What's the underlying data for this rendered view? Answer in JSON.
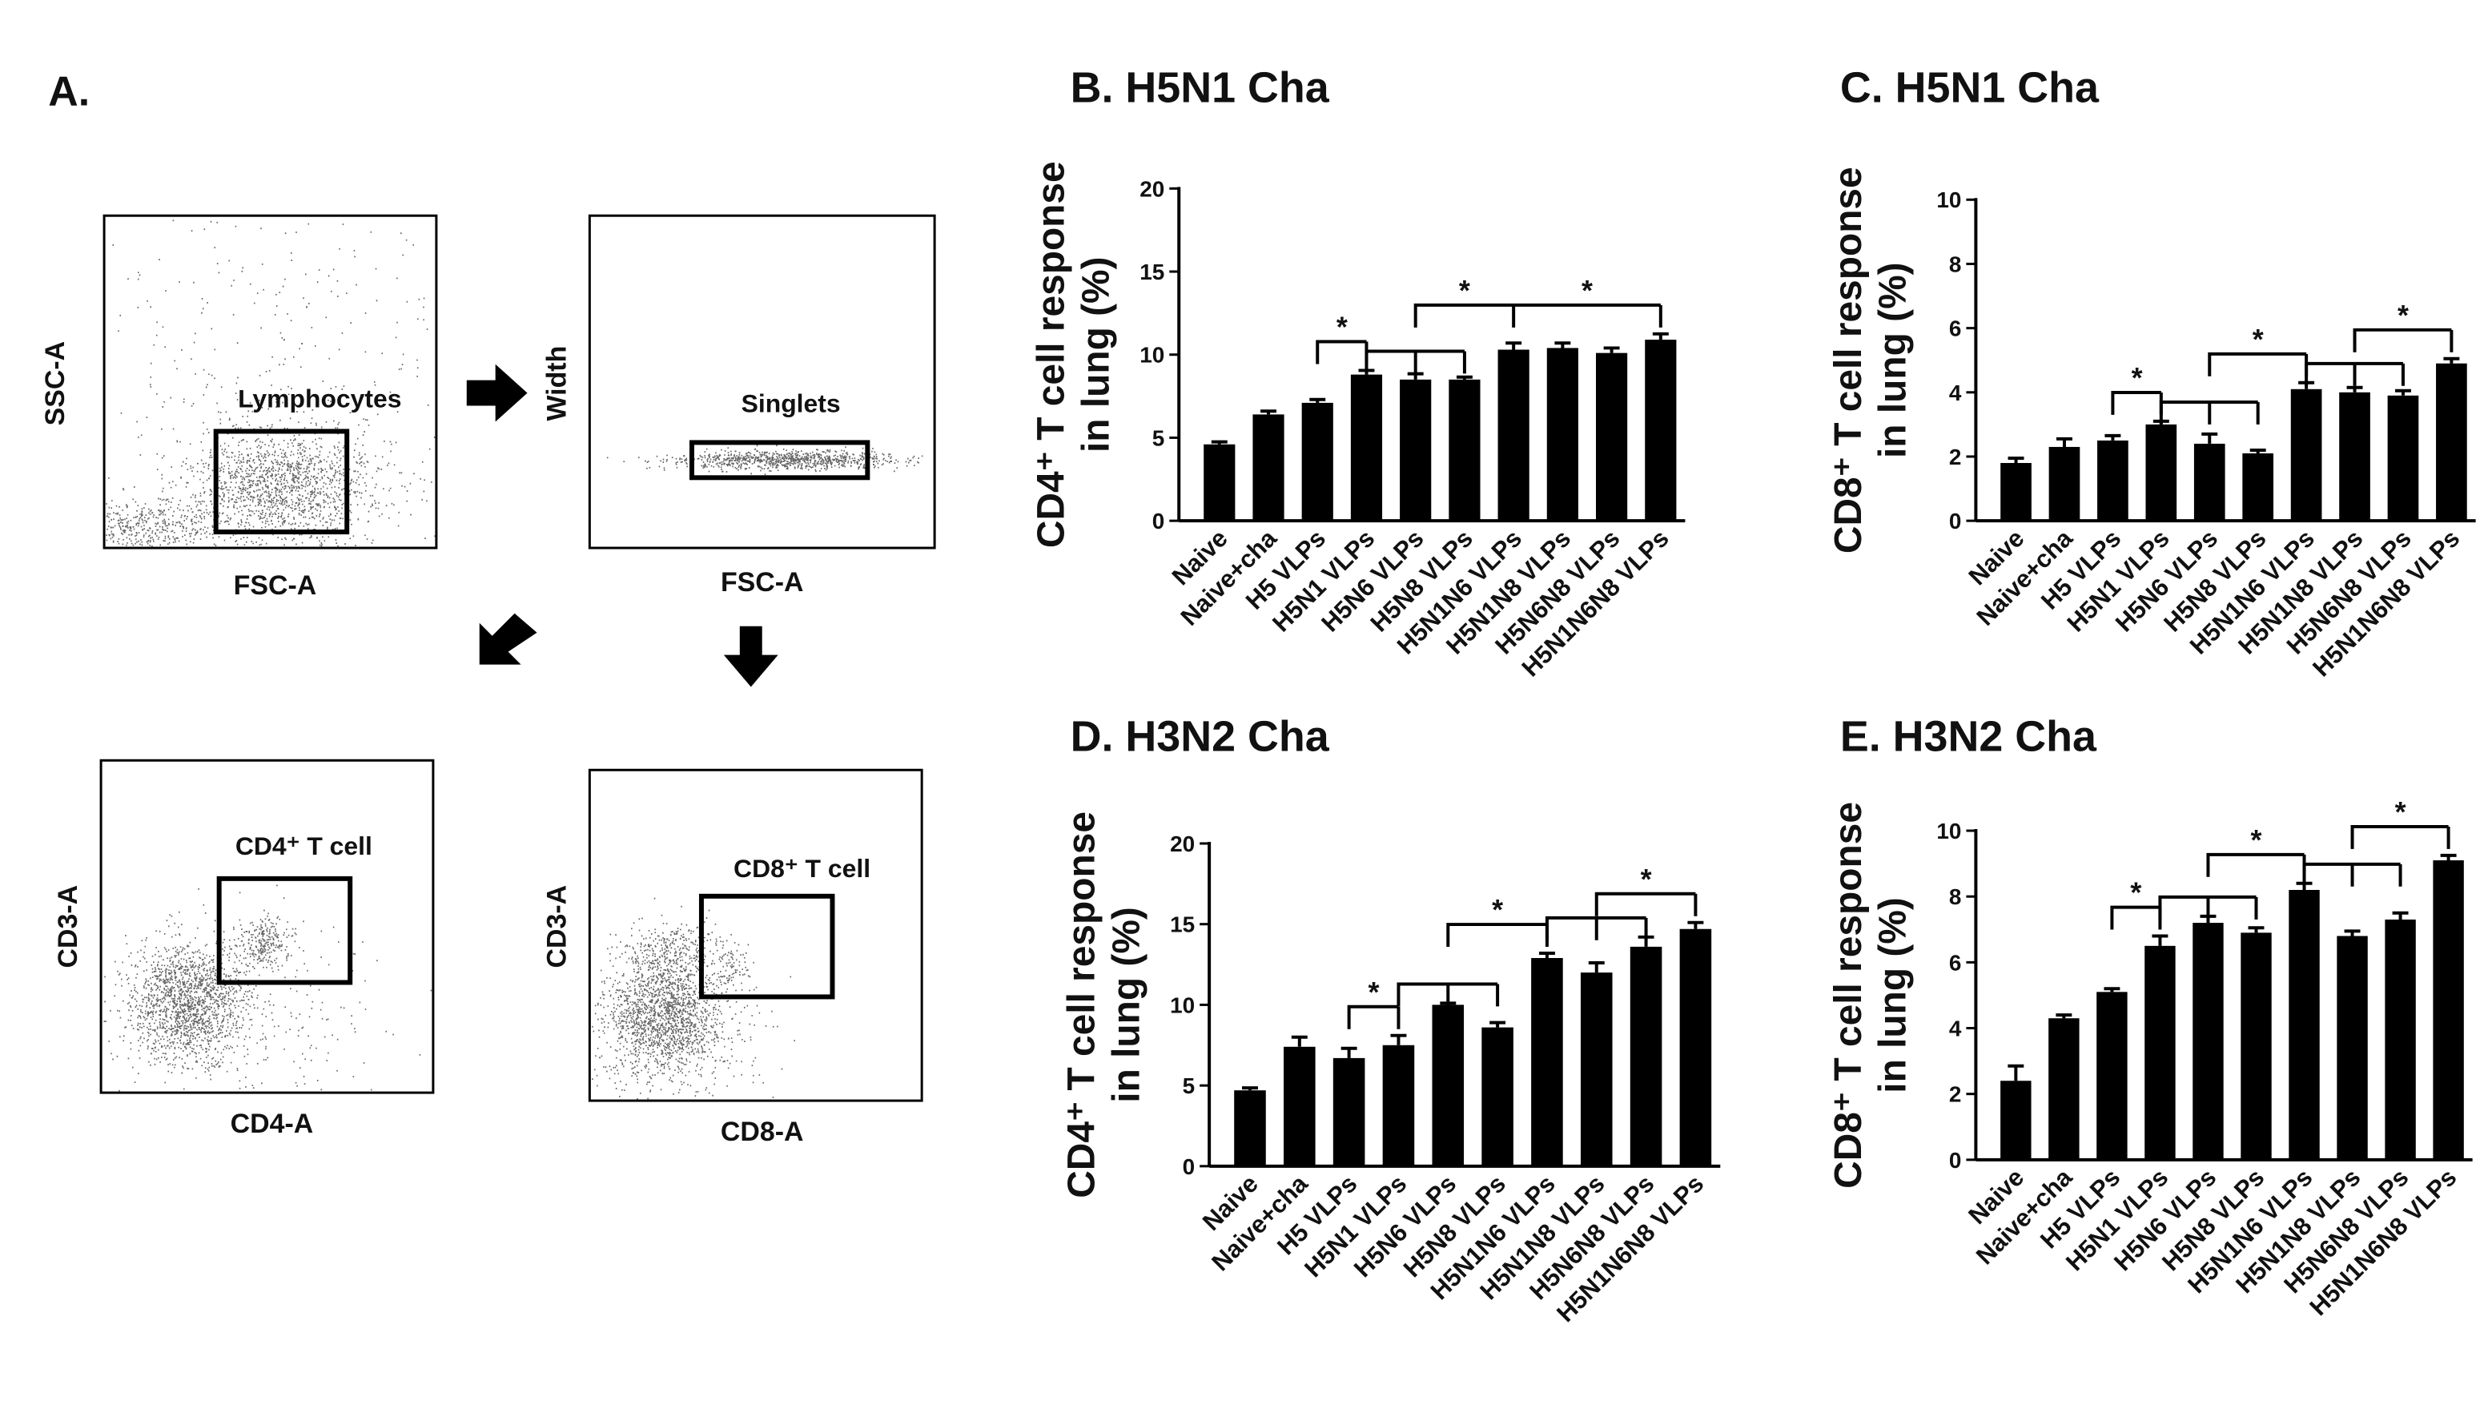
{
  "flow_panel": {
    "label": "A.",
    "plots": [
      {
        "y_label": "SSC-A",
        "x_label": "FSC-A",
        "gate": "Lymphocytes"
      },
      {
        "y_label": "Width",
        "x_label": "FSC-A",
        "gate": "Singlets"
      },
      {
        "y_label": "CD3-A",
        "x_label": "CD4-A",
        "gate": "CD4⁺ T cell"
      },
      {
        "y_label": "CD3-A",
        "x_label": "CD8-A",
        "gate": "CD8⁺ T cell"
      }
    ]
  },
  "chart_data": [
    {
      "type": "bar",
      "title": "B. H5N1 Cha",
      "y_label": [
        "CD4⁺ T cell response",
        "in lung (%)"
      ],
      "color": "#000000",
      "categories": [
        "Naive",
        "Naive+cha",
        "H5 VLPs",
        "H5N1 VLPs",
        "H5N6 VLPs",
        "H5N8 VLPs",
        "H5N1N6 VLPs",
        "H5N1N8 VLPs",
        "H5N6N8 VLPs",
        "H5N1N6N8 VLPs"
      ],
      "values": [
        4.6,
        6.4,
        7.1,
        8.8,
        8.5,
        8.5,
        10.3,
        10.4,
        10.1,
        10.9
      ],
      "errors": [
        0.15,
        0.2,
        0.2,
        0.25,
        0.35,
        0.15,
        0.4,
        0.3,
        0.3,
        0.35
      ],
      "ylim": [
        0,
        20
      ],
      "yticks": [
        0,
        5,
        10,
        15,
        20
      ],
      "comparisons": [
        {
          "from": "H5 VLPs",
          "to": [
            "H5N1 VLPs"
          ],
          "labels": [
            "*"
          ]
        },
        {
          "from": "H5N1 VLPs",
          "to": [
            "H5N6 VLPs",
            "H5N8 VLPs"
          ],
          "labels": []
        },
        {
          "from": "H5N6 VLPs",
          "to": [
            "H5N1N6 VLPs",
            "H5N1N6N8 VLPs"
          ],
          "labels": [
            "*",
            "*"
          ]
        }
      ]
    },
    {
      "type": "bar",
      "title": "C. H5N1 Cha",
      "y_label": [
        "CD8⁺ T cell response",
        "in lung (%)"
      ],
      "color": "#000000",
      "categories": [
        "Naive",
        "Naive+cha",
        "H5 VLPs",
        "H5N1 VLPs",
        "H5N6 VLPs",
        "H5N8 VLPs",
        "H5N1N6 VLPs",
        "H5N1N8 VLPs",
        "H5N6N8 VLPs",
        "H5N1N6N8 VLPs"
      ],
      "values": [
        1.8,
        2.3,
        2.5,
        3.0,
        2.4,
        2.1,
        4.1,
        4.0,
        3.9,
        4.9
      ],
      "errors": [
        0.15,
        0.25,
        0.15,
        0.1,
        0.3,
        0.1,
        0.2,
        0.15,
        0.15,
        0.15
      ],
      "ylim": [
        0,
        10
      ],
      "yticks": [
        0,
        2,
        4,
        6,
        8,
        10
      ],
      "comparisons": [
        {
          "from": "H5 VLPs",
          "to": [
            "H5N1 VLPs"
          ],
          "labels": [
            "*"
          ]
        },
        {
          "from": "H5N1 VLPs",
          "to": [
            "H5N6 VLPs",
            "H5N8 VLPs"
          ],
          "labels": []
        },
        {
          "from": "H5N6 VLPs",
          "to": [
            "H5N1N6 VLPs"
          ],
          "labels": [
            "*"
          ]
        },
        {
          "from": "H5N1N6 VLPs",
          "to": [
            "H5N1N8 VLPs",
            "H5N6N8 VLPs"
          ],
          "labels": []
        },
        {
          "from": "H5N1N8 VLPs",
          "to": [
            "H5N1N6N8 VLPs"
          ],
          "labels": [
            "*"
          ]
        }
      ]
    },
    {
      "type": "bar",
      "title": "D. H3N2 Cha",
      "y_label": [
        "CD4⁺ T cell response",
        "in lung (%)"
      ],
      "color": "#000000",
      "categories": [
        "Naive",
        "Naive+cha",
        "H5 VLPs",
        "H5N1 VLPs",
        "H5N6 VLPs",
        "H5N8 VLPs",
        "H5N1N6 VLPs",
        "H5N1N8 VLPs",
        "H5N6N8 VLPs",
        "H5N1N6N8 VLPs"
      ],
      "values": [
        4.7,
        7.4,
        6.7,
        7.5,
        10.0,
        8.6,
        12.9,
        12.0,
        13.6,
        14.7
      ],
      "errors": [
        0.15,
        0.6,
        0.6,
        0.6,
        0.1,
        0.3,
        0.3,
        0.6,
        0.6,
        0.4
      ],
      "ylim": [
        0,
        20
      ],
      "yticks": [
        0,
        5,
        10,
        15,
        20
      ],
      "comparisons": [
        {
          "from": "H5 VLPs",
          "to": [
            "H5N1 VLPs"
          ],
          "labels": [
            "*"
          ]
        },
        {
          "from": "H5N1 VLPs",
          "to": [
            "H5N6 VLPs",
            "H5N8 VLPs"
          ],
          "labels": []
        },
        {
          "from": "H5N6 VLPs",
          "to": [
            "H5N1N6 VLPs"
          ],
          "labels": [
            "*"
          ]
        },
        {
          "from": "H5N1N6 VLPs",
          "to": [
            "H5N1N8 VLPs",
            "H5N6N8 VLPs"
          ],
          "labels": []
        },
        {
          "from": "H5N1N8 VLPs",
          "to": [
            "H5N1N6N8 VLPs"
          ],
          "labels": [
            "*"
          ]
        }
      ]
    },
    {
      "type": "bar",
      "title": "E. H3N2 Cha",
      "y_label": [
        "CD8⁺ T cell response",
        "in lung (%)"
      ],
      "color": "#000000",
      "categories": [
        "Naive",
        "Naive+cha",
        "H5 VLPs",
        "H5N1 VLPs",
        "H5N6 VLPs",
        "H5N8 VLPs",
        "H5N1N6 VLPs",
        "H5N1N8 VLPs",
        "H5N6N8 VLPs",
        "H5N1N6N8 VLPs"
      ],
      "values": [
        2.4,
        4.3,
        5.1,
        6.5,
        7.2,
        6.9,
        8.2,
        6.8,
        7.3,
        9.1
      ],
      "errors": [
        0.45,
        0.1,
        0.1,
        0.3,
        0.2,
        0.15,
        0.2,
        0.15,
        0.2,
        0.15
      ],
      "ylim": [
        0,
        10
      ],
      "yticks": [
        0,
        2,
        4,
        6,
        8,
        10
      ],
      "comparisons": [
        {
          "from": "H5 VLPs",
          "to": [
            "H5N1 VLPs"
          ],
          "labels": [
            "*"
          ]
        },
        {
          "from": "H5N1 VLPs",
          "to": [
            "H5N6 VLPs",
            "H5N8 VLPs"
          ],
          "labels": []
        },
        {
          "from": "H5N6 VLPs",
          "to": [
            "H5N1N6 VLPs"
          ],
          "labels": [
            "*"
          ]
        },
        {
          "from": "H5N1N6 VLPs",
          "to": [
            "H5N1N8 VLPs",
            "H5N6N8 VLPs"
          ],
          "labels": []
        },
        {
          "from": "H5N1N8 VLPs",
          "to": [
            "H5N1N6N8 VLPs"
          ],
          "labels": [
            "*"
          ]
        }
      ]
    }
  ]
}
